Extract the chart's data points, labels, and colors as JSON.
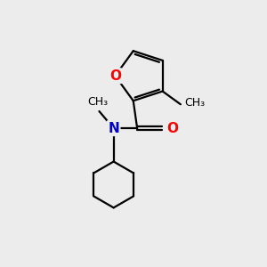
{
  "bg_color": "#ececec",
  "bond_color": "#000000",
  "O_color": "#ff0000",
  "N_color": "#0000cc",
  "line_width": 1.6,
  "font_size": 11,
  "figsize": [
    3.0,
    3.0
  ],
  "dpi": 100,
  "xlim": [
    0,
    10
  ],
  "ylim": [
    0,
    10
  ]
}
